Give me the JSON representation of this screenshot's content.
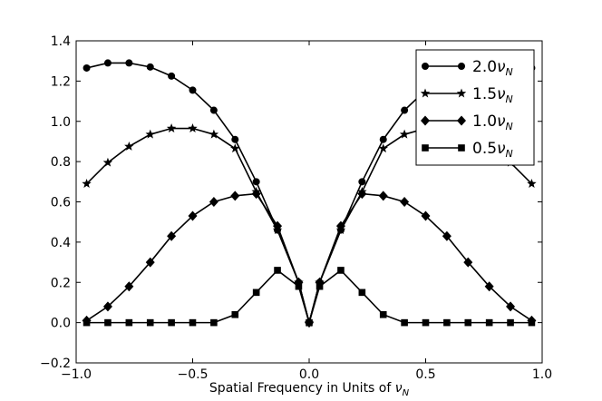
{
  "chart_data": {
    "type": "line",
    "title": "",
    "xlabel": "Spatial Frequency in Units of ",
    "xlabel_symbol": "ν",
    "xlabel_subscript": "N",
    "ylabel": "",
    "xlim": [
      -1.0,
      1.0
    ],
    "ylim": [
      -0.2,
      1.4
    ],
    "xticks": [
      -1.0,
      -0.5,
      0.0,
      0.5,
      1.0
    ],
    "xtick_labels": [
      "−1.0",
      "−0.5",
      "0.0",
      "0.5",
      "1.0"
    ],
    "yticks": [
      -0.2,
      0.0,
      0.2,
      0.4,
      0.6,
      0.8,
      1.0,
      1.2,
      1.4
    ],
    "ytick_labels": [
      "−0.2",
      "0.0",
      "0.2",
      "0.4",
      "0.6",
      "0.8",
      "1.0",
      "1.2",
      "1.4"
    ],
    "grid": false,
    "legend_position": "top-right",
    "x": [
      -0.955,
      -0.864,
      -0.773,
      -0.682,
      -0.591,
      -0.5,
      -0.409,
      -0.318,
      -0.227,
      -0.136,
      -0.045,
      0.0,
      0.045,
      0.136,
      0.227,
      0.318,
      0.409,
      0.5,
      0.591,
      0.682,
      0.773,
      0.864,
      0.955
    ],
    "series": [
      {
        "name": "2.0",
        "marker": "circle",
        "values": [
          1.265,
          1.29,
          1.29,
          1.27,
          1.225,
          1.155,
          1.055,
          0.91,
          0.7,
          0.46,
          0.2,
          0.0,
          0.2,
          0.46,
          0.7,
          0.91,
          1.055,
          1.155,
          1.225,
          1.27,
          1.29,
          1.29,
          1.265
        ]
      },
      {
        "name": "1.5",
        "marker": "star",
        "values": [
          0.69,
          0.795,
          0.875,
          0.935,
          0.965,
          0.965,
          0.935,
          0.865,
          0.65,
          0.46,
          0.2,
          0.0,
          0.2,
          0.46,
          0.65,
          0.865,
          0.935,
          0.965,
          0.965,
          0.935,
          0.875,
          0.795,
          0.69
        ]
      },
      {
        "name": "1.0",
        "marker": "diamond",
        "values": [
          0.01,
          0.08,
          0.18,
          0.3,
          0.43,
          0.53,
          0.6,
          0.63,
          0.64,
          0.48,
          0.2,
          0.0,
          0.2,
          0.48,
          0.64,
          0.63,
          0.6,
          0.53,
          0.43,
          0.3,
          0.18,
          0.08,
          0.01
        ]
      },
      {
        "name": "0.5",
        "marker": "square",
        "values": [
          0.0,
          0.0,
          0.0,
          0.0,
          0.0,
          0.0,
          0.0,
          0.04,
          0.15,
          0.26,
          0.18,
          0.0,
          0.18,
          0.26,
          0.15,
          0.04,
          0.0,
          0.0,
          0.0,
          0.0,
          0.0,
          0.0,
          0.0
        ]
      }
    ],
    "legend_symbol": "ν",
    "legend_subscript": "N",
    "colors": {
      "line": "#000000",
      "background": "#ffffff",
      "axes": "#000000"
    }
  }
}
